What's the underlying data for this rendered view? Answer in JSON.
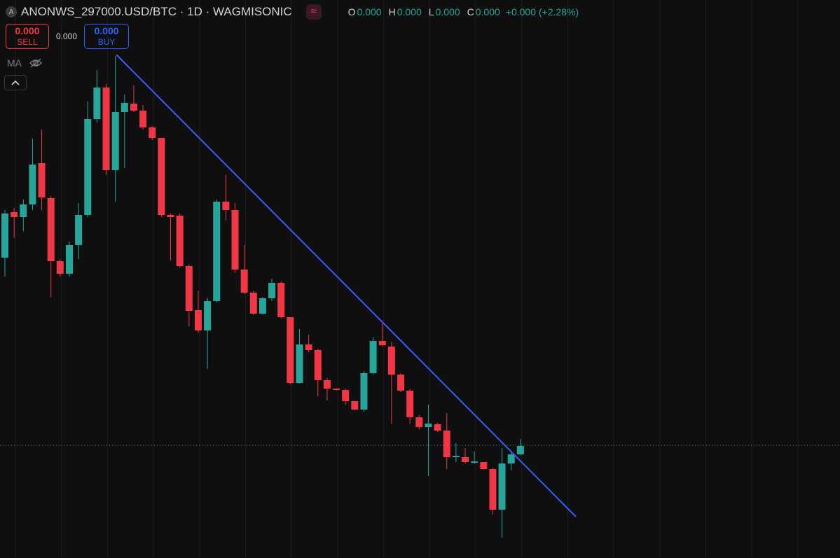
{
  "header": {
    "icon": "A",
    "symbol": "ANONWS_297000.USD/BTC · 1D · WAGMISONIC",
    "o_label": "O",
    "o": "0.000",
    "h_label": "H",
    "h": "0.000",
    "l_label": "L",
    "l": "0.000",
    "c_label": "C",
    "c": "0.000",
    "change": "+0.000 (+2.28%)"
  },
  "trade": {
    "sell_price": "0.000",
    "sell": "SELL",
    "spread": "0.000",
    "buy_price": "0.000",
    "buy": "BUY"
  },
  "indicator": "MA",
  "chart_data": {
    "type": "candlestick",
    "ylim": [
      0,
      800
    ],
    "up_color": "#26a69a",
    "down_color": "#f23645",
    "open": [
      432,
      497,
      490,
      508,
      567,
      517,
      427,
      409,
      450,
      493,
      630,
      675,
      557,
      640,
      652,
      642,
      618,
      603,
      493,
      492,
      420,
      357,
      328,
      370,
      512,
      500,
      415,
      382,
      352,
      374,
      396,
      347,
      253,
      308,
      300,
      257,
      245,
      243,
      227,
      215,
      267,
      313,
      305,
      265,
      242,
      204,
      190,
      194,
      185,
      147,
      147,
      139,
      140,
      130,
      72,
      138,
      151
    ],
    "high": [
      500,
      503,
      515,
      602,
      615,
      520,
      430,
      455,
      510,
      655,
      700,
      680,
      720,
      665,
      678,
      650,
      620,
      603,
      495,
      495,
      422,
      385,
      375,
      515,
      550,
      510,
      450,
      385,
      376,
      402,
      398,
      347,
      330,
      322,
      302,
      260,
      245,
      245,
      227,
      270,
      318,
      338,
      312,
      267,
      244,
      207,
      222,
      196,
      210,
      167,
      160,
      155,
      140,
      132,
      160,
      154,
      173
    ],
    "low": [
      405,
      460,
      470,
      500,
      500,
      375,
      405,
      405,
      430,
      490,
      625,
      550,
      512,
      560,
      640,
      615,
      600,
      490,
      428,
      418,
      334,
      325,
      273,
      368,
      485,
      410,
      380,
      350,
      350,
      370,
      345,
      251,
      252,
      297,
      234,
      228,
      242,
      222,
      214,
      212,
      265,
      305,
      195,
      240,
      195,
      187,
      120,
      183,
      130,
      140,
      138,
      137,
      129,
      65,
      32,
      128,
      150
    ],
    "close": [
      495,
      490,
      508,
      565,
      518,
      427,
      409,
      450,
      493,
      630,
      675,
      557,
      640,
      653,
      642,
      618,
      603,
      493,
      490,
      420,
      356,
      328,
      370,
      512,
      500,
      415,
      382,
      352,
      374,
      396,
      347,
      253,
      308,
      300,
      257,
      245,
      243,
      227,
      215,
      267,
      313,
      307,
      265,
      242,
      204,
      190,
      195,
      185,
      147,
      149,
      140,
      141,
      130,
      72,
      138,
      151,
      163
    ]
  }
}
